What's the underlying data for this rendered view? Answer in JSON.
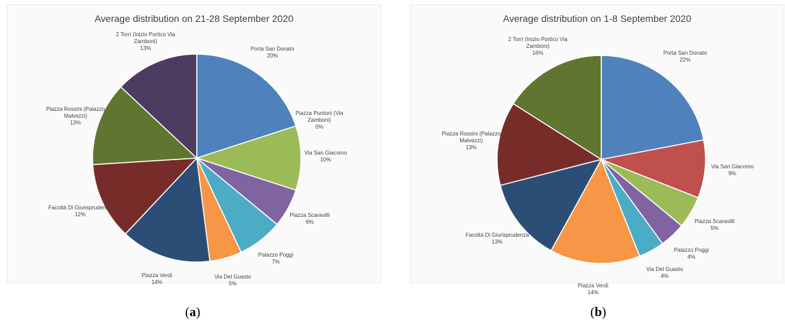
{
  "chart_data": [
    {
      "type": "pie",
      "title": "Average distribution on 21-28 September 2020",
      "caption": "a",
      "slices": [
        {
          "label": "Porta San Donato",
          "value": 20,
          "display": "20%",
          "color": "#4f81bd"
        },
        {
          "label": "Piazza Puntoni (Via Zamboni)",
          "value": 0,
          "display": "0%",
          "color": "#c0504d"
        },
        {
          "label": "Via San Giacomo",
          "value": 10,
          "display": "10%",
          "color": "#9bbb59"
        },
        {
          "label": "Piazza Scaravilli",
          "value": 6,
          "display": "6%",
          "color": "#8064a2"
        },
        {
          "label": "Palazzo Poggi",
          "value": 7,
          "display": "7%",
          "color": "#4bacc6"
        },
        {
          "label": "Via Del Guasto",
          "value": 5,
          "display": "5%",
          "color": "#f79646"
        },
        {
          "label": "Piazza Verdi",
          "value": 14,
          "display": "14%",
          "color": "#2c4d75"
        },
        {
          "label": "Facoltà Di Giurisprudenza",
          "value": 12,
          "display": "12%",
          "color": "#772c2a"
        },
        {
          "label": "Piazza Rossini (Palazzo Malvezzi)",
          "value": 13,
          "display": "13%",
          "color": "#5f7530"
        },
        {
          "label": "2 Torri (Inizio Portico Via Zamboni)",
          "value": 13,
          "display": "13%",
          "color": "#4d3b62"
        }
      ]
    },
    {
      "type": "pie",
      "title": "Average distribution on 1-8 September 2020",
      "caption": "b",
      "slices": [
        {
          "label": "Porta San Donato",
          "value": 22,
          "display": "22%",
          "color": "#4f81bd"
        },
        {
          "label": "Via San Giacomo",
          "value": 9,
          "display": "9%",
          "color": "#c0504d"
        },
        {
          "label": "Piazza Scaravilli",
          "value": 5,
          "display": "5%",
          "color": "#9bbb59"
        },
        {
          "label": "Palazzo Poggi",
          "value": 4,
          "display": "4%",
          "color": "#8064a2"
        },
        {
          "label": "Via Del Guasto",
          "value": 4,
          "display": "4%",
          "color": "#4bacc6"
        },
        {
          "label": "Piazza Verdi",
          "value": 14,
          "display": "14%",
          "color": "#f79646"
        },
        {
          "label": "Facoltà Di Giurisprudenza",
          "value": 13,
          "display": "13%",
          "color": "#2c4d75"
        },
        {
          "label": "Piazza Rossini (Palazzo Malvezzi)",
          "value": 13,
          "display": "13%",
          "color": "#772c2a"
        },
        {
          "label": "2 Torri (Inizio Portico Via Zamboni)",
          "value": 16,
          "display": "16%",
          "color": "#5f7530"
        }
      ]
    }
  ]
}
